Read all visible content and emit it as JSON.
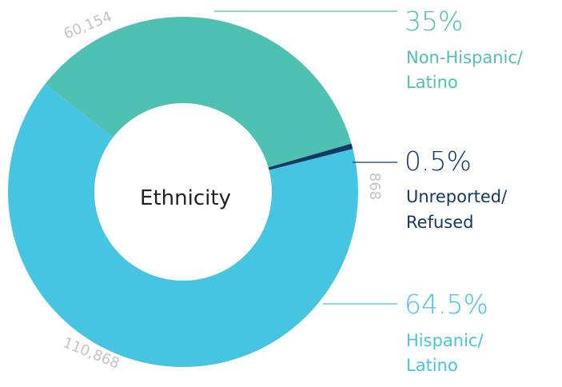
{
  "chart_data": {
    "type": "pie",
    "title": "Ethnicity",
    "slices": [
      {
        "key": "hispanic",
        "value": 110868,
        "value_label": "110,868",
        "percent_label": "64.5%",
        "label_lines": [
          "Hispanic/",
          "Latino"
        ],
        "color": "#45c5e2"
      },
      {
        "key": "nonhispanic",
        "value": 60154,
        "value_label": "60,154",
        "percent_label": "35%",
        "label_lines": [
          "Non-Hispanic/",
          "Latino"
        ],
        "color": "#4ec1b2"
      },
      {
        "key": "unreported",
        "value": 868,
        "value_label": "868",
        "percent_label": "0.5%",
        "label_lines": [
          "Unreported/",
          "Refused"
        ],
        "color": "#123a63"
      }
    ],
    "colors": {
      "count_label": "#c4c4c4",
      "leader_hispanic": "#45c5e2",
      "leader_nonhispanic": "#4ec1b2",
      "leader_unreported": "#123a63"
    }
  }
}
